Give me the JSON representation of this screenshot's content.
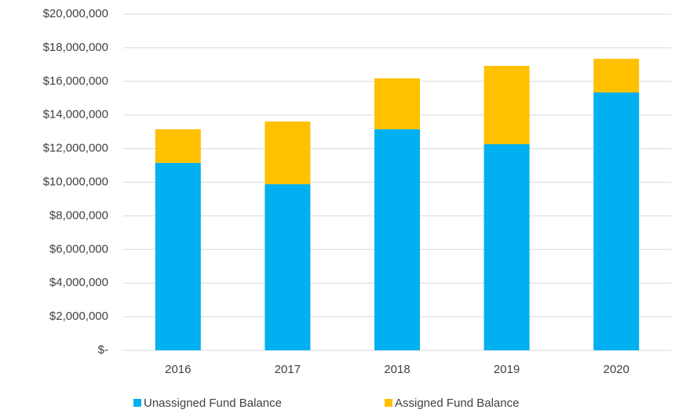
{
  "chart_data": {
    "type": "stacked_bar",
    "categories": [
      "2016",
      "2017",
      "2018",
      "2019",
      "2020"
    ],
    "series": [
      {
        "name": "Unassigned Fund Balance",
        "color": "#00b0f0",
        "values": [
          11150000,
          9880000,
          13150000,
          12260000,
          15340000
        ]
      },
      {
        "name": "Assigned Fund Balance",
        "color": "#ffc000",
        "values": [
          2000000,
          3730000,
          3030000,
          4660000,
          2000000
        ]
      }
    ],
    "ylim": [
      0,
      20000000
    ],
    "yticks": [
      {
        "value": 0,
        "label": "$-"
      },
      {
        "value": 2000000,
        "label": "$2,000,000"
      },
      {
        "value": 4000000,
        "label": "$4,000,000"
      },
      {
        "value": 6000000,
        "label": "$6,000,000"
      },
      {
        "value": 8000000,
        "label": "$8,000,000"
      },
      {
        "value": 10000000,
        "label": "$10,000,000"
      },
      {
        "value": 12000000,
        "label": "$12,000,000"
      },
      {
        "value": 14000000,
        "label": "$14,000,000"
      },
      {
        "value": 16000000,
        "label": "$16,000,000"
      },
      {
        "value": 18000000,
        "label": "$18,000,000"
      },
      {
        "value": 20000000,
        "label": "$20,000,000"
      }
    ],
    "grid": true,
    "legend": "bottom"
  }
}
